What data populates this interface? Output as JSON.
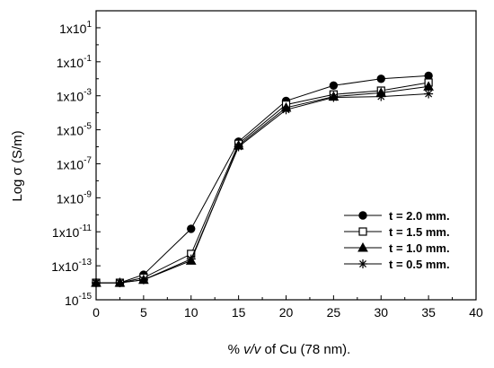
{
  "chart_data": {
    "type": "line",
    "x_axis": {
      "label_prefix": "% ",
      "label_italic": "v/v",
      "label_suffix": " of Cu (78 nm).",
      "lim": [
        0,
        40
      ],
      "ticks": [
        0,
        5,
        10,
        15,
        20,
        25,
        30,
        35,
        40
      ],
      "tick_labels": [
        "0",
        "5",
        "10",
        "15",
        "20",
        "25",
        "30",
        "35",
        "40"
      ]
    },
    "y_axis": {
      "label": "Log σ (S/m)",
      "scale": "log",
      "lim_exp": [
        -15,
        2
      ],
      "major_tick_exps": [
        -15,
        -13,
        -11,
        -9,
        -7,
        -5,
        -3,
        -1,
        1
      ],
      "tick_labels": [
        {
          "base": "10",
          "exp": "-15",
          "coef": ""
        },
        {
          "base": "1x10",
          "exp": "-13",
          "coef": ""
        },
        {
          "base": "1x10",
          "exp": "-11",
          "coef": ""
        },
        {
          "base": "1x10",
          "exp": "-9",
          "coef": ""
        },
        {
          "base": "1x10",
          "exp": "-7",
          "coef": ""
        },
        {
          "base": "1x10",
          "exp": "-5",
          "coef": ""
        },
        {
          "base": "1x10",
          "exp": "-3",
          "coef": ""
        },
        {
          "base": "1x10",
          "exp": "-1",
          "coef": ""
        },
        {
          "base": "1x10",
          "exp": "1",
          "coef": ""
        }
      ]
    },
    "x": [
      0,
      2.5,
      5,
      10,
      15,
      20,
      25,
      30,
      35
    ],
    "series": [
      {
        "name": "t = 2.0 mm.",
        "marker": "filled-circle",
        "values": [
          1e-14,
          1e-14,
          3e-14,
          1.5e-11,
          2e-06,
          0.0005,
          0.004,
          0.01,
          0.015
        ]
      },
      {
        "name": "t = 1.5 mm.",
        "marker": "open-square",
        "values": [
          1e-14,
          1e-14,
          2e-14,
          5e-13,
          1.5e-06,
          0.0003,
          0.0012,
          0.002,
          0.006
        ]
      },
      {
        "name": "t = 1.0 mm.",
        "marker": "filled-triangle",
        "values": [
          1e-14,
          1e-14,
          1.5e-14,
          2e-13,
          1.2e-06,
          0.0002,
          0.0009,
          0.0015,
          0.0035
        ]
      },
      {
        "name": "t = 0.5 mm.",
        "marker": "asterisk",
        "values": [
          1e-14,
          1e-14,
          1.5e-14,
          2.5e-13,
          1e-06,
          0.00015,
          0.0008,
          0.0009,
          0.0013
        ]
      }
    ],
    "legend_position": "lower-right",
    "grid": false,
    "colors": {
      "line": "#000000",
      "background": "#ffffff"
    }
  }
}
